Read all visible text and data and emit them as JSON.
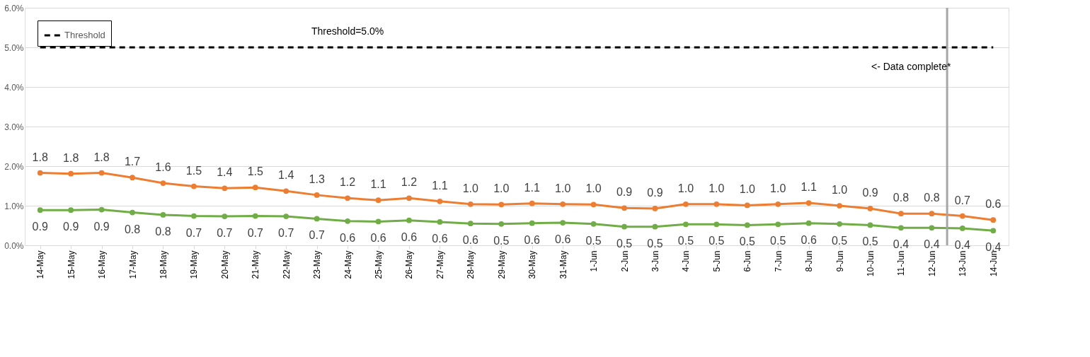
{
  "chart_data": {
    "type": "line",
    "categories": [
      "14-May",
      "15-May",
      "16-May",
      "17-May",
      "18-May",
      "19-May",
      "20-May",
      "21-May",
      "22-May",
      "23-May",
      "24-May",
      "25-May",
      "26-May",
      "27-May",
      "28-May",
      "29-May",
      "30-May",
      "31-May",
      "1-Jun",
      "2-Jun",
      "3-Jun",
      "4-Jun",
      "5-Jun",
      "6-Jun",
      "7-Jun",
      "8-Jun",
      "9-Jun",
      "10-Jun",
      "11-Jun",
      "12-Jun",
      "13-Jun",
      "14-Jun"
    ],
    "series": [
      {
        "color": "#ed7d31",
        "marker": "circle",
        "line_style": "solid",
        "values": [
          1.83,
          1.81,
          1.83,
          1.71,
          1.57,
          1.49,
          1.44,
          1.46,
          1.37,
          1.27,
          1.19,
          1.14,
          1.19,
          1.11,
          1.04,
          1.03,
          1.06,
          1.04,
          1.03,
          0.94,
          0.93,
          1.04,
          1.04,
          1.01,
          1.04,
          1.07,
          1.0,
          0.93,
          0.8,
          0.8,
          0.74,
          0.64
        ],
        "value_labels": [
          "1.8",
          "1.8",
          "1.8",
          "1.7",
          "1.6",
          "1.5",
          "1.4",
          "1.5",
          "1.4",
          "1.3",
          "1.2",
          "1.1",
          "1.2",
          "1.1",
          "1.0",
          "1.0",
          "1.1",
          "1.0",
          "1.0",
          "0.9",
          "0.9",
          "1.0",
          "1.0",
          "1.0",
          "1.0",
          "1.1",
          "1.0",
          "0.9",
          "0.8",
          "0.8",
          "0.7",
          "0.6"
        ]
      },
      {
        "color": "#70ad47",
        "marker": "circle",
        "line_style": "solid",
        "values": [
          0.89,
          0.89,
          0.9,
          0.83,
          0.77,
          0.74,
          0.73,
          0.74,
          0.73,
          0.67,
          0.61,
          0.6,
          0.63,
          0.59,
          0.55,
          0.54,
          0.56,
          0.57,
          0.54,
          0.47,
          0.47,
          0.53,
          0.53,
          0.51,
          0.53,
          0.56,
          0.54,
          0.51,
          0.44,
          0.44,
          0.43,
          0.37
        ],
        "value_labels": [
          "0.9",
          "0.9",
          "0.9",
          "0.8",
          "0.8",
          "0.7",
          "0.7",
          "0.7",
          "0.7",
          "0.7",
          "0.6",
          "0.6",
          "0.6",
          "0.6",
          "0.6",
          "0.5",
          "0.6",
          "0.6",
          "0.5",
          "0.5",
          "0.5",
          "0.5",
          "0.5",
          "0.5",
          "0.5",
          "0.6",
          "0.5",
          "0.5",
          "0.4",
          "0.4",
          "0.4",
          "0.4"
        ]
      },
      {
        "name": "Threshold",
        "color": "#000000",
        "marker": "none",
        "line_style": "dashed",
        "values": [
          5.0,
          5.0,
          5.0,
          5.0,
          5.0,
          5.0,
          5.0,
          5.0,
          5.0,
          5.0,
          5.0,
          5.0,
          5.0,
          5.0,
          5.0,
          5.0,
          5.0,
          5.0,
          5.0,
          5.0,
          5.0,
          5.0,
          5.0,
          5.0,
          5.0,
          5.0,
          5.0,
          5.0,
          5.0,
          5.0,
          5.0,
          5.0
        ]
      }
    ],
    "ylim": [
      0,
      6
    ],
    "yticks": [
      {
        "value": 0,
        "label": "0.0%"
      },
      {
        "value": 1,
        "label": "1.0%"
      },
      {
        "value": 2,
        "label": "2.0%"
      },
      {
        "value": 3,
        "label": "3.0%"
      },
      {
        "value": 4,
        "label": "4.0%"
      },
      {
        "value": 5,
        "label": "5.0%"
      },
      {
        "value": 6,
        "label": "6.0%"
      }
    ],
    "ref_lines": [
      {
        "axis": "x",
        "value": "13-Jun",
        "color": "#a6a6a6",
        "line_style": "solid"
      }
    ],
    "annotations": [
      {
        "text": "Threshold=5.0%",
        "x": "24-May",
        "y": 5.0
      },
      "<- Data complete*"
    ],
    "grid": "y",
    "legend": "top left"
  }
}
